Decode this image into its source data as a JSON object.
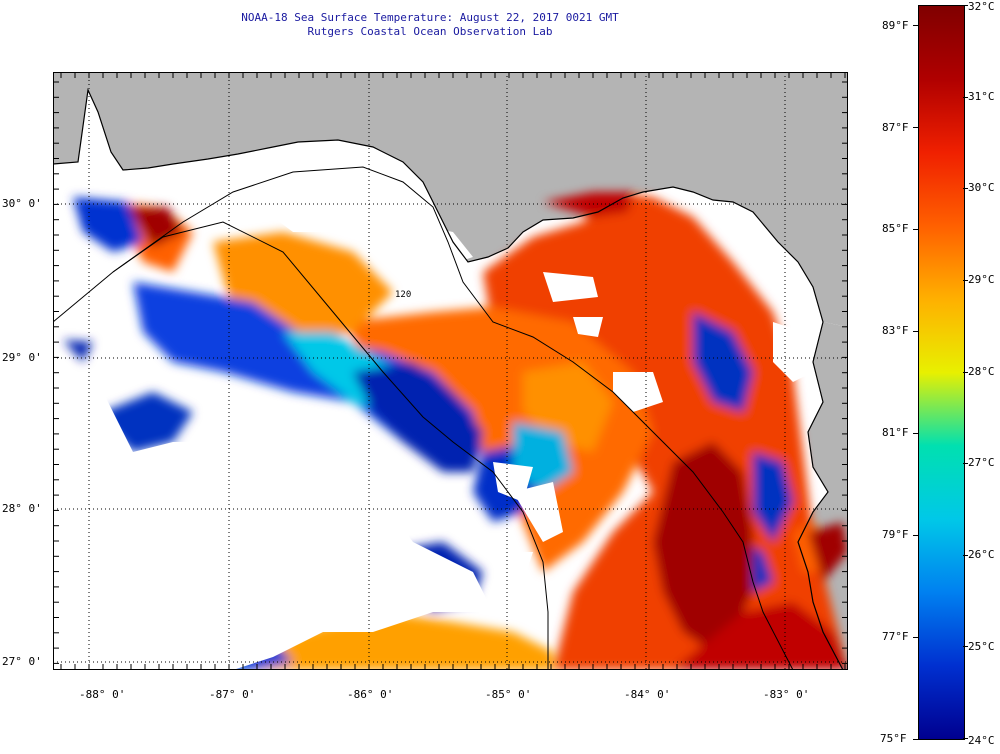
{
  "title": "NOAA-18 Sea Surface Temperature:  August 22, 2017 0021 GMT",
  "subtitle": "Rutgers Coastal Ocean Observation Lab",
  "map": {
    "lat_labels": [
      "30° 0'",
      "29° 0'",
      "28° 0'",
      "27° 0'"
    ],
    "lon_labels": [
      "-88° 0'",
      "-87° 0'",
      "-86° 0'",
      "-85° 0'",
      "-84° 0'",
      "-83° 0'"
    ],
    "isobath_label": "120",
    "colors": {
      "land": "#b4b4b4",
      "no_data": "#ffffff",
      "coast": "#000000"
    }
  },
  "colorbar": {
    "f_labels": [
      "89°F",
      "87°F",
      "85°F",
      "83°F",
      "81°F",
      "79°F",
      "77°F",
      "75°F"
    ],
    "c_labels": [
      "32°C",
      "31°C",
      "30°C",
      "29°C",
      "28°C",
      "27°C",
      "26°C",
      "25°C",
      "24°C"
    ],
    "colors": [
      "#00008f",
      "#0030d0",
      "#0080f0",
      "#00c8e8",
      "#00e0b0",
      "#e8f000",
      "#ffb000",
      "#ff6000",
      "#f02000",
      "#b00000",
      "#800000"
    ]
  }
}
